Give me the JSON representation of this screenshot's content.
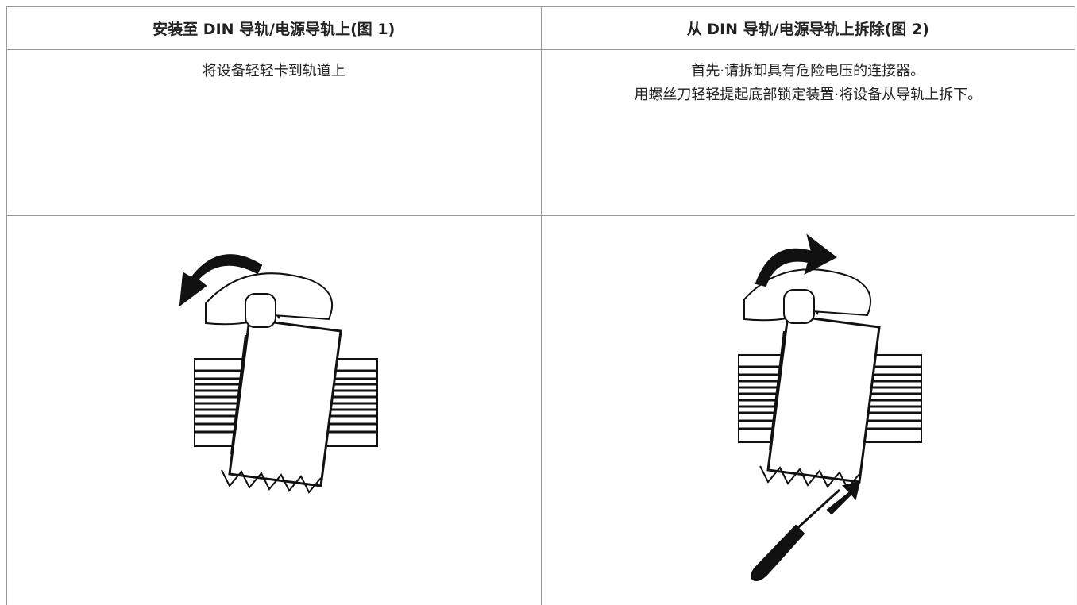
{
  "table": {
    "headers": [
      "安装至 DIN 导轨/电源导轨上(图 1)",
      "从 DIN 导轨/电源导轨上拆除(图 2)"
    ],
    "rows": [
      [
        "将设备轻轻卡到轨道上",
        [
          "首先·请拆卸具有危险电压的连接器。",
          "用螺丝刀轻轻提起底部锁定装置·将设备从导轨上拆下。"
        ]
      ]
    ]
  }
}
